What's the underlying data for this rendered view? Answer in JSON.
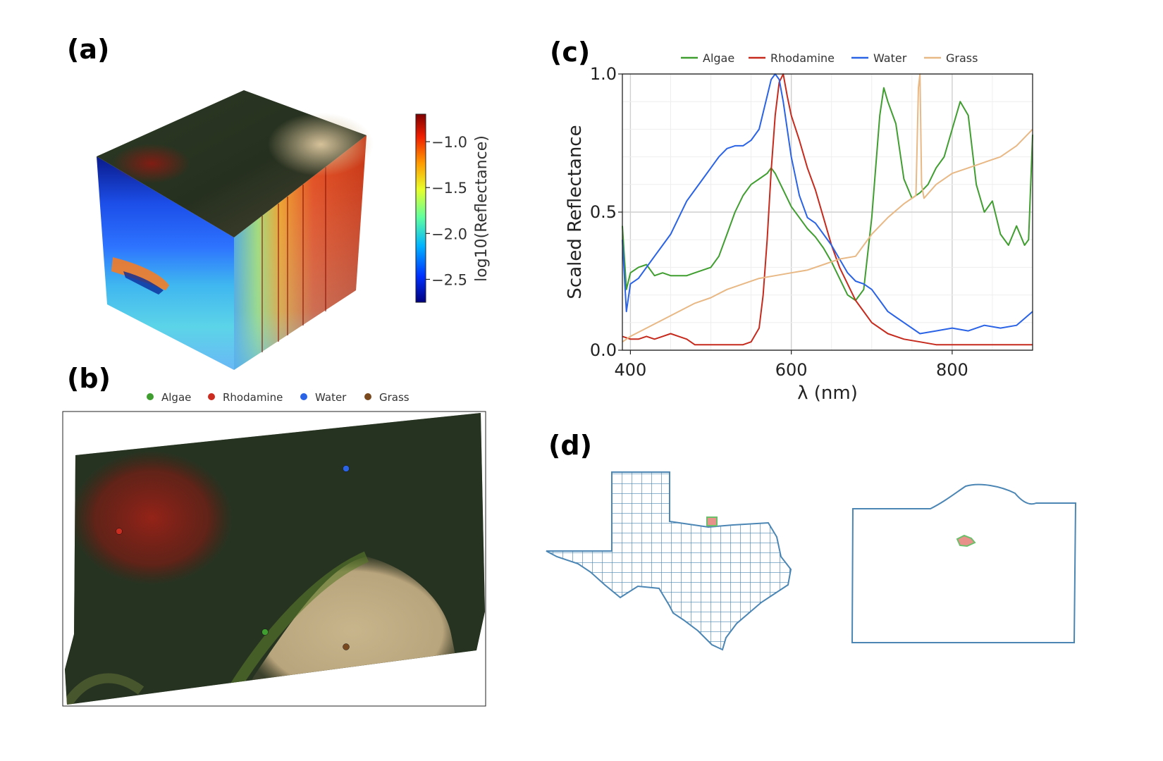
{
  "panels": {
    "a": "(a)",
    "b": "(b)",
    "c": "(c)",
    "d": "(d)"
  },
  "colorbar": {
    "label": "log10(Reflectance)",
    "ticks": [
      {
        "value": -1.0,
        "label": "−1.0"
      },
      {
        "value": -1.5,
        "label": "−1.5"
      },
      {
        "value": -2.0,
        "label": "−2.0"
      },
      {
        "value": -2.5,
        "label": "−2.5"
      }
    ],
    "range": [
      -2.75,
      -0.7
    ],
    "colormap": [
      "#00007f",
      "#0030ff",
      "#00b4ff",
      "#5dffa0",
      "#e8ff2a",
      "#ff9a00",
      "#f01e00",
      "#7f0000"
    ]
  },
  "map": {
    "legend": [
      {
        "name": "Algae",
        "color": "#3f9e2f"
      },
      {
        "name": "Rhodamine",
        "color": "#cc2b1f"
      },
      {
        "name": "Water",
        "color": "#2a63e6"
      },
      {
        "name": "Grass",
        "color": "#7a4a1e"
      }
    ]
  },
  "chart_data": {
    "type": "line",
    "title": "",
    "xlabel": "λ (nm)",
    "ylabel": "Scaled Reflectance",
    "xlim": [
      390,
      900
    ],
    "ylim": [
      0.0,
      1.0
    ],
    "xticks": [
      400,
      600,
      800
    ],
    "yticks": [
      0.0,
      0.5,
      1.0
    ],
    "xtick_labels": [
      "400",
      "600",
      "800"
    ],
    "ytick_labels": [
      "0.0",
      "0.5",
      "1.0"
    ],
    "grid": true,
    "legend_position": "top",
    "series": [
      {
        "name": "Algae",
        "color": "#3f9e2f",
        "x": [
          390,
          395,
          400,
          410,
          420,
          430,
          440,
          450,
          460,
          470,
          480,
          490,
          500,
          510,
          520,
          530,
          540,
          550,
          560,
          570,
          575,
          580,
          590,
          600,
          610,
          620,
          630,
          640,
          650,
          660,
          670,
          680,
          690,
          700,
          710,
          715,
          720,
          730,
          740,
          750,
          760,
          770,
          780,
          790,
          800,
          810,
          820,
          830,
          840,
          850,
          860,
          870,
          880,
          890,
          895,
          900
        ],
        "y": [
          0.45,
          0.22,
          0.28,
          0.3,
          0.31,
          0.27,
          0.28,
          0.27,
          0.27,
          0.27,
          0.28,
          0.29,
          0.3,
          0.34,
          0.42,
          0.5,
          0.56,
          0.6,
          0.62,
          0.64,
          0.66,
          0.64,
          0.58,
          0.52,
          0.48,
          0.44,
          0.41,
          0.37,
          0.32,
          0.26,
          0.2,
          0.18,
          0.22,
          0.48,
          0.85,
          0.95,
          0.9,
          0.82,
          0.62,
          0.55,
          0.57,
          0.6,
          0.66,
          0.7,
          0.8,
          0.9,
          0.85,
          0.6,
          0.5,
          0.54,
          0.42,
          0.38,
          0.45,
          0.38,
          0.4,
          0.78
        ]
      },
      {
        "name": "Rhodamine",
        "color": "#c62a1d",
        "x": [
          390,
          400,
          410,
          420,
          430,
          440,
          450,
          460,
          470,
          480,
          490,
          500,
          510,
          520,
          530,
          540,
          550,
          560,
          565,
          570,
          575,
          580,
          585,
          590,
          595,
          600,
          610,
          620,
          630,
          640,
          650,
          660,
          670,
          680,
          690,
          700,
          720,
          740,
          760,
          780,
          800,
          820,
          840,
          860,
          880,
          900
        ],
        "y": [
          0.05,
          0.04,
          0.04,
          0.05,
          0.04,
          0.05,
          0.06,
          0.05,
          0.04,
          0.02,
          0.02,
          0.02,
          0.02,
          0.02,
          0.02,
          0.02,
          0.03,
          0.08,
          0.2,
          0.4,
          0.65,
          0.85,
          0.97,
          1.0,
          0.92,
          0.85,
          0.76,
          0.66,
          0.58,
          0.48,
          0.38,
          0.3,
          0.24,
          0.18,
          0.14,
          0.1,
          0.06,
          0.04,
          0.03,
          0.02,
          0.02,
          0.02,
          0.02,
          0.02,
          0.02,
          0.02
        ]
      },
      {
        "name": "Water",
        "color": "#2a63e6",
        "x": [
          390,
          395,
          400,
          410,
          420,
          430,
          440,
          450,
          460,
          470,
          480,
          490,
          500,
          510,
          520,
          530,
          540,
          550,
          560,
          565,
          570,
          575,
          580,
          585,
          590,
          600,
          610,
          620,
          630,
          640,
          650,
          660,
          670,
          680,
          690,
          700,
          710,
          720,
          730,
          740,
          760,
          780,
          800,
          820,
          840,
          860,
          880,
          900
        ],
        "y": [
          0.4,
          0.14,
          0.24,
          0.26,
          0.3,
          0.34,
          0.38,
          0.42,
          0.48,
          0.54,
          0.58,
          0.62,
          0.66,
          0.7,
          0.73,
          0.74,
          0.74,
          0.76,
          0.8,
          0.86,
          0.92,
          0.98,
          1.0,
          0.98,
          0.9,
          0.7,
          0.56,
          0.48,
          0.46,
          0.42,
          0.38,
          0.33,
          0.28,
          0.25,
          0.24,
          0.22,
          0.18,
          0.14,
          0.12,
          0.1,
          0.06,
          0.07,
          0.08,
          0.07,
          0.09,
          0.08,
          0.09,
          0.14
        ]
      },
      {
        "name": "Grass",
        "color": "#e8b885",
        "x": [
          390,
          400,
          420,
          440,
          460,
          480,
          500,
          520,
          540,
          560,
          580,
          600,
          620,
          640,
          660,
          680,
          700,
          720,
          740,
          755,
          758,
          760,
          762,
          765,
          780,
          800,
          820,
          840,
          860,
          880,
          900
        ],
        "y": [
          0.03,
          0.05,
          0.08,
          0.11,
          0.14,
          0.17,
          0.19,
          0.22,
          0.24,
          0.26,
          0.27,
          0.28,
          0.29,
          0.31,
          0.33,
          0.34,
          0.42,
          0.48,
          0.53,
          0.56,
          0.95,
          1.0,
          0.6,
          0.55,
          0.6,
          0.64,
          0.66,
          0.68,
          0.7,
          0.74,
          0.8
        ]
      }
    ]
  }
}
